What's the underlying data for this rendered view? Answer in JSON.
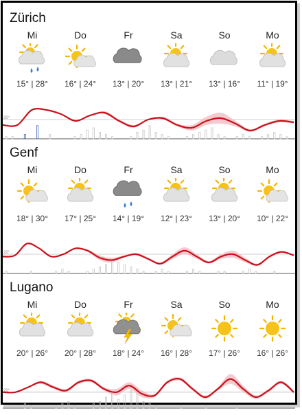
{
  "cities": [
    {
      "name": "Zürich",
      "days": [
        {
          "day": "Mi",
          "temps": "15° | 28°",
          "icon": "partly-cloudy-rain-icon"
        },
        {
          "day": "Do",
          "temps": "16° | 24°",
          "icon": "sun-cloud-icon"
        },
        {
          "day": "Fr",
          "temps": "13° | 20°",
          "icon": "dark-cloud-icon"
        },
        {
          "day": "Sa",
          "temps": "13° | 21°",
          "icon": "partly-cloudy-icon"
        },
        {
          "day": "So",
          "temps": "13° | 16°",
          "icon": "cloud-icon"
        },
        {
          "day": "Mo",
          "temps": "11° | 19°",
          "icon": "partly-cloudy-icon"
        }
      ],
      "tick_label": "20°",
      "chart_data": {
        "type": "line",
        "series": [
          {
            "values": [
              16,
              16,
              27,
              27,
              24,
              19,
              23,
              25,
              19,
              15,
              20,
              21,
              16,
              14,
              19,
              21,
              17,
              12,
              16,
              19,
              18
            ]
          }
        ],
        "band": [
          0,
          0,
          0,
          0,
          0,
          0,
          0,
          1,
          1,
          1,
          0,
          1,
          1,
          2,
          3,
          4,
          2,
          1,
          1,
          1,
          1
        ],
        "ylim": [
          8,
          32
        ]
      },
      "rain": [
        1,
        1,
        0,
        2,
        0,
        6,
        0,
        2,
        0,
        0,
        0,
        1,
        2,
        4,
        5,
        3,
        2,
        1,
        0,
        0,
        1,
        3,
        4,
        6,
        3,
        2,
        1,
        0,
        0,
        1,
        2,
        3,
        4,
        5,
        2,
        1,
        0,
        1,
        2,
        1,
        0,
        1,
        2,
        3,
        2,
        1
      ]
    },
    {
      "name": "Genf",
      "days": [
        {
          "day": "Mi",
          "temps": "18° | 30°",
          "icon": "sun-cloud-icon"
        },
        {
          "day": "Do",
          "temps": "17° | 25°",
          "icon": "partly-cloudy-icon"
        },
        {
          "day": "Fr",
          "temps": "14° | 19°",
          "icon": "dark-cloud-rain-icon"
        },
        {
          "day": "Sa",
          "temps": "12° | 23°",
          "icon": "partly-cloudy-icon"
        },
        {
          "day": "So",
          "temps": "13° | 20°",
          "icon": "partly-cloudy-icon"
        },
        {
          "day": "Mo",
          "temps": "10° | 22°",
          "icon": "sun-cloud-icon"
        }
      ],
      "tick_label": "20°",
      "chart_data": {
        "type": "line",
        "series": [
          {
            "values": [
              18,
              19,
              29,
              25,
              18,
              20,
              25,
              23,
              17,
              15,
              18,
              20,
              16,
              12,
              18,
              23,
              18,
              13,
              18,
              20,
              15,
              11,
              18,
              22,
              19
            ]
          }
        ],
        "band": [
          0,
          0,
          0,
          0,
          0,
          0,
          0,
          1,
          2,
          2,
          1,
          1,
          1,
          1,
          2,
          3,
          2,
          1,
          2,
          3,
          2,
          1,
          1,
          1,
          0
        ],
        "ylim": [
          6,
          34
        ]
      },
      "rain": [
        1,
        0,
        0,
        0,
        1,
        0,
        0,
        0,
        1,
        2,
        1,
        0,
        0,
        1,
        2,
        3,
        4,
        6,
        5,
        4,
        3,
        2,
        1,
        0,
        1,
        2,
        1,
        0,
        0,
        1,
        2,
        1,
        0,
        0,
        1,
        1,
        0,
        0,
        1,
        2,
        1,
        0,
        0,
        1,
        0,
        0
      ]
    },
    {
      "name": "Lugano",
      "days": [
        {
          "day": "Mi",
          "temps": "20° | 26°",
          "icon": "partly-cloudy-icon"
        },
        {
          "day": "Do",
          "temps": "20° | 28°",
          "icon": "partly-cloudy-icon"
        },
        {
          "day": "Fr",
          "temps": "18° | 24°",
          "icon": "thunderstorm-icon"
        },
        {
          "day": "Sa",
          "temps": "16° | 28°",
          "icon": "sun-cloud-icon"
        },
        {
          "day": "So",
          "temps": "17° | 26°",
          "icon": "sun-icon"
        },
        {
          "day": "Mo",
          "temps": "16° | 26°",
          "icon": "sun-icon"
        }
      ],
      "tick_label": "20°",
      "chart_data": {
        "type": "line",
        "series": [
          {
            "values": [
              20,
              20,
              23,
              26,
              23,
              21,
              26,
              27,
              22,
              20,
              24,
              19,
              18,
              26,
              28,
              22,
              17,
              22,
              28,
              22,
              17,
              21,
              26,
              20
            ]
          }
        ],
        "band": [
          0,
          0,
          0,
          1,
          1,
          1,
          1,
          1,
          1,
          2,
          2,
          2,
          1,
          1,
          1,
          1,
          1,
          1,
          3,
          2,
          1,
          1,
          1,
          1
        ],
        "ylim": [
          12,
          32
        ]
      },
      "rain": [
        0,
        0,
        0,
        2,
        1,
        0,
        0,
        0,
        1,
        2,
        3,
        1,
        0,
        0,
        2,
        3,
        5,
        7,
        4,
        6,
        8,
        9,
        3,
        2,
        1,
        0,
        0,
        0,
        1,
        0,
        0,
        0,
        1,
        0,
        0,
        0,
        0,
        1,
        0,
        0,
        0,
        0,
        0,
        0,
        0,
        0
      ]
    }
  ]
}
